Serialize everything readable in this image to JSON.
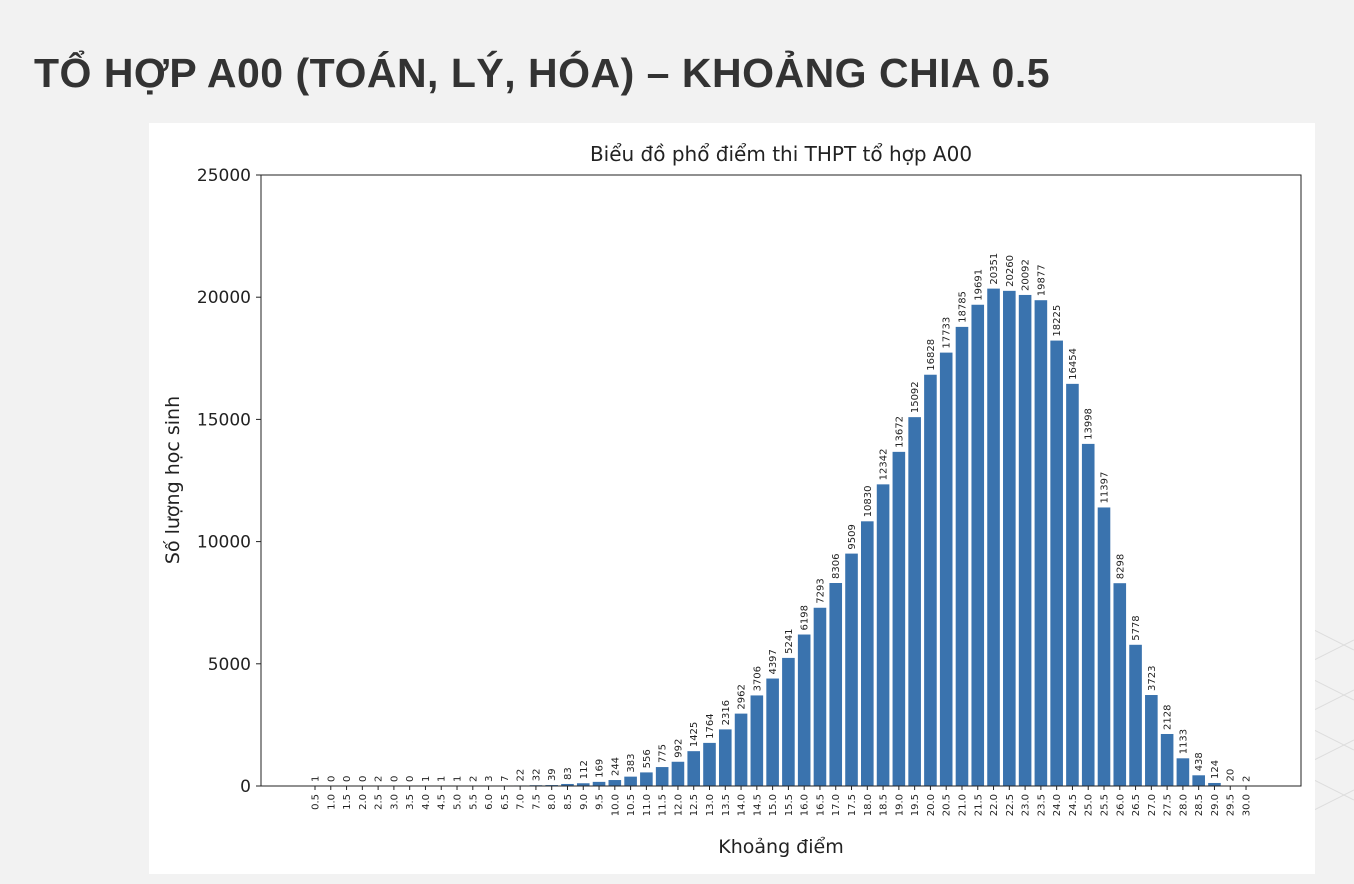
{
  "page": {
    "title": "TỔ HỢP A00 (TOÁN, LÝ, HÓA) – KHOẢNG CHIA 0.5"
  },
  "colors": {
    "bar": "#3a73ae",
    "background": "#f2f2f2",
    "card": "#ffffff",
    "title": "#333333"
  },
  "chart_data": {
    "type": "bar",
    "title": "Biểu đồ phổ điểm thi THPT tổ hợp A00",
    "xlabel": "Khoảng điểm",
    "ylabel": "Số lượng học sinh",
    "ylim": [
      0,
      25000
    ],
    "yticks": [
      0,
      5000,
      10000,
      15000,
      20000,
      25000
    ],
    "grid": false,
    "categories": [
      "0.5",
      "1.0",
      "1.5",
      "2.0",
      "2.5",
      "3.0",
      "3.5",
      "4.0",
      "4.5",
      "5.0",
      "5.5",
      "6.0",
      "6.5",
      "7.0",
      "7.5",
      "8.0",
      "8.5",
      "9.0",
      "9.5",
      "10.0",
      "10.5",
      "11.0",
      "11.5",
      "12.0",
      "12.5",
      "13.0",
      "13.5",
      "14.0",
      "14.5",
      "15.0",
      "15.5",
      "16.0",
      "16.5",
      "17.0",
      "17.5",
      "18.0",
      "18.5",
      "19.0",
      "19.5",
      "20.0",
      "20.5",
      "21.0",
      "21.5",
      "22.0",
      "22.5",
      "23.0",
      "23.5",
      "24.0",
      "24.5",
      "25.0",
      "25.5",
      "26.0",
      "26.5",
      "27.0",
      "27.5",
      "28.0",
      "28.5",
      "29.0",
      "29.5",
      "30.0"
    ],
    "values": [
      1,
      0,
      0,
      0,
      2,
      0,
      0,
      1,
      1,
      1,
      2,
      3,
      7,
      22,
      32,
      39,
      83,
      112,
      169,
      244,
      383,
      556,
      775,
      992,
      1425,
      1764,
      2316,
      2962,
      3706,
      4397,
      5241,
      6198,
      7293,
      8306,
      9509,
      10830,
      12342,
      13672,
      15092,
      16828,
      17733,
      18785,
      19691,
      20351,
      20260,
      20092,
      19877,
      18225,
      16454,
      13998,
      11397,
      8298,
      5778,
      3723,
      2128,
      1133,
      438,
      124,
      20,
      2
    ]
  }
}
